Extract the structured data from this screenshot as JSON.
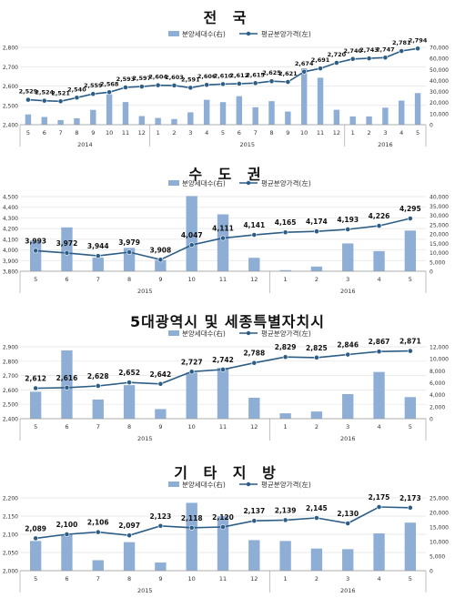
{
  "colors": {
    "bar": "#8eaed6",
    "line": "#2c5d86",
    "grid": "#e3e3e3",
    "axis": "#999999",
    "text": "#333333",
    "label": "#111111"
  },
  "legend": {
    "bar_label": "분양세대수(右)",
    "line_label": "평균분양가격(左)"
  },
  "chart_data": [
    {
      "type": "bar",
      "title": "전 국",
      "x_ticks": [
        "5",
        "6",
        "7",
        "8",
        "9",
        "10",
        "11",
        "12",
        "1",
        "2",
        "3",
        "4",
        "5",
        "6",
        "7",
        "8",
        "9",
        "10",
        "11",
        "12",
        "1",
        "2",
        "3",
        "4",
        "5"
      ],
      "year_labels": [
        "2014",
        "2015",
        "2016"
      ],
      "left_axis": {
        "ticks": [
          "2,400",
          "2,500",
          "2,600",
          "2,700",
          "2,800"
        ],
        "min": 2400,
        "max": 2800
      },
      "right_axis": {
        "ticks": [
          "0",
          "10,000",
          "20,000",
          "30,000",
          "40,000",
          "50,000",
          "60,000",
          "70,000"
        ],
        "min": 0,
        "max": 70000
      },
      "series": [
        {
          "name": "분양세대수(右)",
          "values": [
            9300,
            7000,
            4200,
            5800,
            13400,
            27500,
            20500,
            7800,
            6100,
            5100,
            11200,
            22500,
            20400,
            25800,
            15800,
            21300,
            11900,
            51000,
            42500,
            13500,
            7500,
            7500,
            15400,
            21800,
            28600
          ]
        },
        {
          "name": "평균분양가격(左)",
          "values": [
            2529,
            2524,
            2521,
            2540,
            2559,
            2568,
            2593,
            2597,
            2604,
            2603,
            2591,
            2606,
            2610,
            2612,
            2615,
            2625,
            2621,
            2674,
            2691,
            2720,
            2740,
            2743,
            2747,
            2781,
            2794
          ]
        }
      ],
      "line_labels": [
        "2,529",
        "2,524",
        "2,521",
        "2,540",
        "2,559",
        "2,568",
        "2,593",
        "2,597",
        "2,604",
        "2,603",
        "2,591",
        "2,606",
        "2,610",
        "2,612",
        "2,615",
        "2,625",
        "2,621",
        "2,674",
        "2,691",
        "2,720",
        "2,740",
        "2,743",
        "2,747",
        "2,781",
        "2,794"
      ]
    },
    {
      "type": "bar",
      "title": "수 도 권",
      "x_ticks": [
        "5",
        "6",
        "7",
        "8",
        "9",
        "10",
        "11",
        "12",
        "1",
        "2",
        "3",
        "4",
        "5"
      ],
      "year_labels": [
        "2015",
        "2016"
      ],
      "left_axis": {
        "ticks": [
          "3,800",
          "3,900",
          "4,000",
          "4,100",
          "4,200",
          "4,300",
          "4,400",
          "4,500"
        ],
        "min": 3800,
        "max": 4500
      },
      "right_axis": {
        "ticks": [
          "0",
          "5,000",
          "10,000",
          "15,000",
          "20,000",
          "25,000",
          "30,000",
          "35,000",
          "40,000"
        ],
        "min": 0,
        "max": 40000
      },
      "series": [
        {
          "name": "분양세대수(右)",
          "values": [
            16500,
            23500,
            7300,
            12500,
            6000,
            40300,
            30500,
            7200,
            600,
            2500,
            14900,
            10800,
            21800
          ]
        },
        {
          "name": "평균분양가격(左)",
          "values": [
            3993,
            3972,
            3944,
            3979,
            3908,
            4047,
            4111,
            4141,
            4165,
            4174,
            4193,
            4226,
            4295
          ]
        }
      ],
      "line_labels": [
        "3,993",
        "3,972",
        "3,944",
        "3,979",
        "3,908",
        "4,047",
        "4,111",
        "4,141",
        "4,165",
        "4,174",
        "4,193",
        "4,226",
        "4,295"
      ]
    },
    {
      "type": "bar",
      "title": "5대광역시 및 세종특별자치시",
      "x_ticks": [
        "5",
        "6",
        "7",
        "8",
        "9",
        "10",
        "11",
        "12",
        "1",
        "2",
        "3",
        "4",
        "5"
      ],
      "year_labels": [
        "2015",
        "2016"
      ],
      "left_axis": {
        "ticks": [
          "2,400",
          "2,500",
          "2,600",
          "2,700",
          "2,800",
          "2,900"
        ],
        "min": 2400,
        "max": 2900
      },
      "right_axis": {
        "ticks": [
          "0",
          "2,000",
          "4,000",
          "6,000",
          "8,000",
          "10,000",
          "12,000"
        ],
        "min": 0,
        "max": 12000
      },
      "series": [
        {
          "name": "분양세대수(右)",
          "values": [
            4500,
            11400,
            3200,
            5600,
            1600,
            7700,
            8500,
            3500,
            900,
            1200,
            4100,
            7800,
            3600
          ]
        },
        {
          "name": "평균분양가격(左)",
          "values": [
            2612,
            2616,
            2628,
            2652,
            2642,
            2727,
            2742,
            2788,
            2829,
            2825,
            2846,
            2867,
            2871
          ]
        }
      ],
      "line_labels": [
        "2,612",
        "2,616",
        "2,628",
        "2,652",
        "2,642",
        "2,727",
        "2,742",
        "2,788",
        "2,829",
        "2,825",
        "2,846",
        "2,867",
        "2,871"
      ]
    },
    {
      "type": "bar",
      "title": "기 타 지 방",
      "x_ticks": [
        "5",
        "6",
        "7",
        "8",
        "9",
        "10",
        "11",
        "12",
        "1",
        "2",
        "3",
        "4",
        "5"
      ],
      "year_labels": [
        "2015",
        "2016"
      ],
      "left_axis": {
        "ticks": [
          "2,000",
          "2,050",
          "2,100",
          "2,150",
          "2,200"
        ],
        "min": 2000,
        "max": 2200
      },
      "right_axis": {
        "ticks": [
          "0",
          "5,000",
          "10,000",
          "15,000",
          "20,000",
          "25,000"
        ],
        "min": 0,
        "max": 25000
      },
      "series": [
        {
          "name": "분양세대수(右)",
          "values": [
            10200,
            12400,
            3600,
            9800,
            2800,
            23300,
            18700,
            10500,
            10200,
            7600,
            7400,
            12800,
            16500
          ]
        },
        {
          "name": "평균분양가격(左)",
          "values": [
            2089,
            2100,
            2106,
            2097,
            2123,
            2118,
            2120,
            2137,
            2139,
            2145,
            2130,
            2175,
            2173
          ]
        }
      ],
      "line_labels": [
        "2,089",
        "2,100",
        "2,106",
        "2,097",
        "2,123",
        "2,118",
        "2,120",
        "2,137",
        "2,139",
        "2,145",
        "2,130",
        "2,175",
        "2,173"
      ]
    }
  ]
}
